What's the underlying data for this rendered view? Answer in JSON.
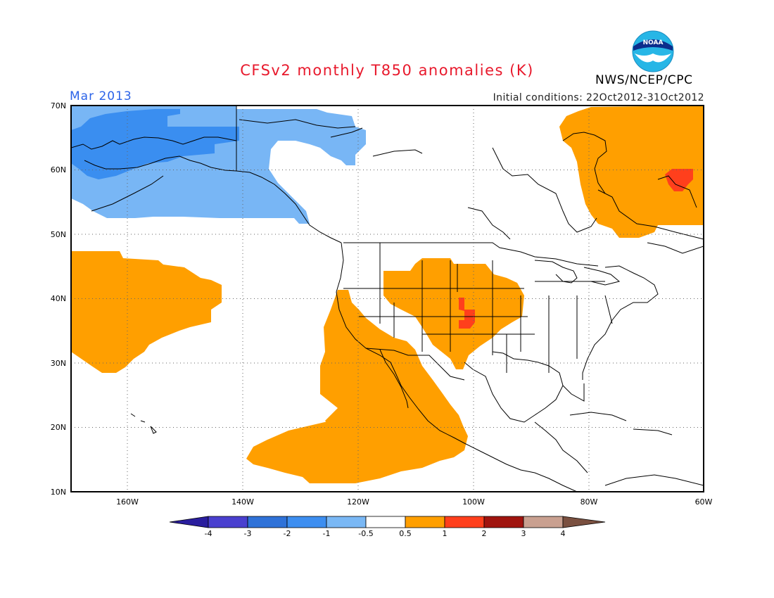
{
  "title": "CFSv2 monthly T850 anomalies (K)",
  "valid_month": "Mar 2013",
  "initial_conditions": "Initial conditions: 22Oct2012-31Oct2012",
  "agency": "NWS/NCEP/CPC",
  "logo_text": "NOAA",
  "lat_labels": [
    "70N",
    "60N",
    "50N",
    "40N",
    "30N",
    "20N",
    "10N"
  ],
  "lon_labels": [
    "160W",
    "140W",
    "120W",
    "100W",
    "80W",
    "60W"
  ],
  "colorbar": {
    "labels": [
      "-4",
      "-3",
      "-2",
      "-1",
      "-0.5",
      "0.5",
      "1",
      "2",
      "3",
      "4"
    ],
    "colors": [
      "#2a1e9e",
      "#4a40cf",
      "#2f72d8",
      "#3d8ef0",
      "#7ab8f5",
      "#ffffff",
      "#ff9f00",
      "#ff3f1c",
      "#a0140f",
      "#c9a090",
      "#7a5040"
    ]
  },
  "colors": {
    "title": "#e8192c",
    "month": "#2b63e8",
    "cold_strong": "#3a8ef0",
    "cold_weak": "#78b6f5",
    "warm": "#ff9f00",
    "hot": "#ff3f1c"
  }
}
